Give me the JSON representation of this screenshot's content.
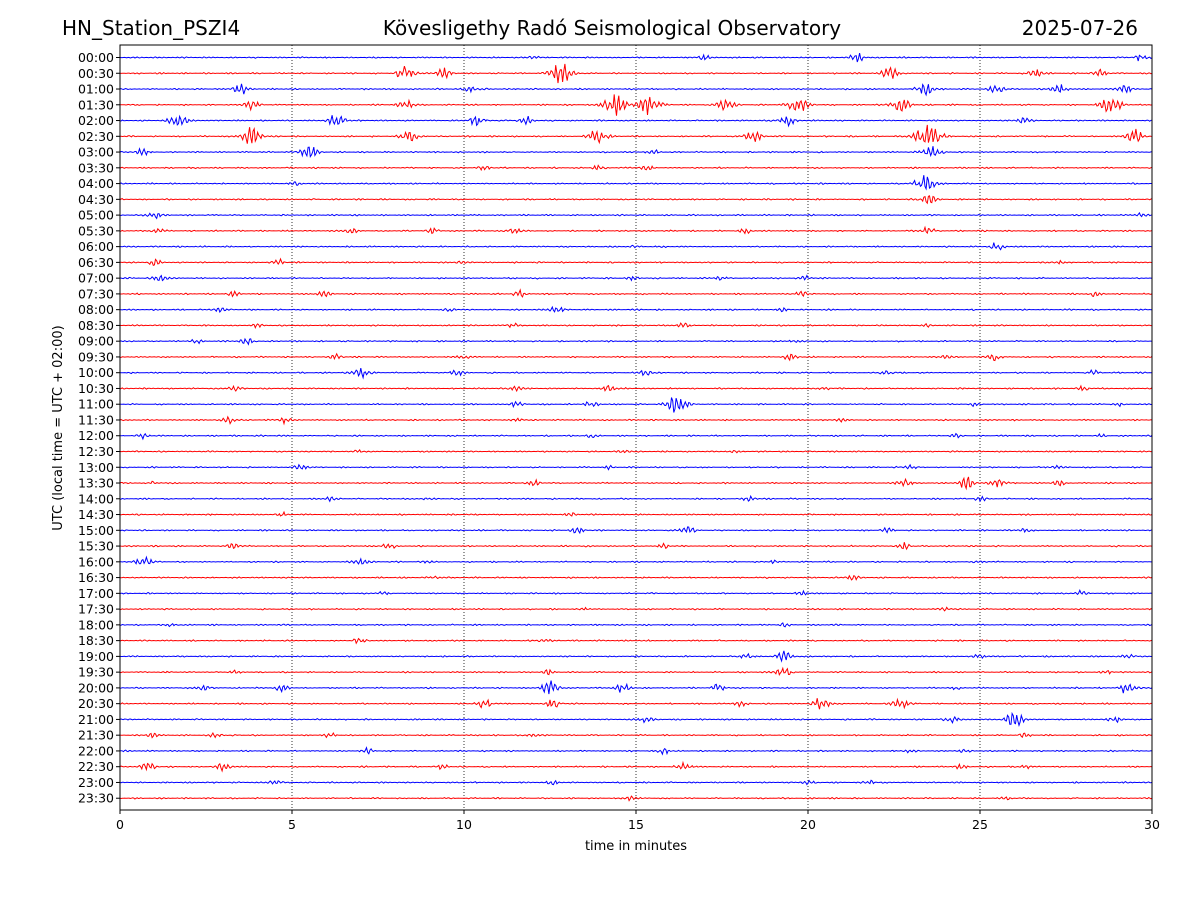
{
  "header": {
    "station": "HN_Station_PSZI4",
    "observatory": "Kövesligethy Radó Seismological Observatory",
    "date": "2025-07-26"
  },
  "chart_data": {
    "type": "line",
    "title": "Kövesligethy Radó Seismological Observatory",
    "xlabel": "time in minutes",
    "ylabel": "UTC (local time = UTC + 02:00)",
    "xlim": [
      0,
      30
    ],
    "x_ticks": [
      "0",
      "5",
      "10",
      "15",
      "20",
      "25",
      "30"
    ],
    "grid": "vertical dotted at each x tick",
    "colors": {
      "even_rows": "#0000ff",
      "odd_rows": "#ff0000"
    },
    "series": [
      {
        "name": "00:00",
        "bursts": [
          [
            21.4,
            0.6
          ],
          [
            29.7,
            0.5
          ],
          [
            17.0,
            0.4
          ],
          [
            12.0,
            0.2
          ]
        ]
      },
      {
        "name": "00:30",
        "bursts": [
          [
            8.3,
            0.8
          ],
          [
            12.8,
            1.2
          ],
          [
            9.4,
            0.6
          ],
          [
            22.4,
            0.7
          ],
          [
            26.6,
            0.6
          ],
          [
            28.5,
            0.5
          ]
        ]
      },
      {
        "name": "01:00",
        "bursts": [
          [
            3.5,
            0.6
          ],
          [
            10.2,
            0.4
          ],
          [
            23.4,
            0.8
          ],
          [
            25.5,
            0.5
          ],
          [
            27.3,
            0.6
          ],
          [
            29.2,
            0.5
          ]
        ]
      },
      {
        "name": "01:30",
        "bursts": [
          [
            3.8,
            0.6
          ],
          [
            8.3,
            0.6
          ],
          [
            14.4,
            1.3
          ],
          [
            15.4,
            1.2
          ],
          [
            17.6,
            0.7
          ],
          [
            19.7,
            1.0
          ],
          [
            22.7,
            0.9
          ],
          [
            28.8,
            1.0
          ]
        ]
      },
      {
        "name": "02:00",
        "bursts": [
          [
            1.7,
            0.8
          ],
          [
            6.3,
            0.8
          ],
          [
            10.4,
            0.7
          ],
          [
            11.8,
            0.5
          ],
          [
            19.4,
            0.6
          ],
          [
            26.3,
            0.5
          ]
        ]
      },
      {
        "name": "02:30",
        "bursts": [
          [
            3.8,
            1.0
          ],
          [
            8.4,
            0.7
          ],
          [
            13.9,
            0.9
          ],
          [
            18.4,
            0.7
          ],
          [
            23.5,
            1.5
          ],
          [
            29.5,
            0.8
          ]
        ]
      },
      {
        "name": "03:00",
        "bursts": [
          [
            0.6,
            0.5
          ],
          [
            5.5,
            0.8
          ],
          [
            23.6,
            0.8
          ],
          [
            15.5,
            0.3
          ]
        ]
      },
      {
        "name": "03:30",
        "bursts": [
          [
            10.6,
            0.3
          ],
          [
            13.9,
            0.3
          ],
          [
            15.3,
            0.3
          ]
        ]
      },
      {
        "name": "04:00",
        "bursts": [
          [
            23.4,
            1.0
          ],
          [
            5.1,
            0.3
          ]
        ]
      },
      {
        "name": "04:30",
        "bursts": [
          [
            23.5,
            0.6
          ]
        ]
      },
      {
        "name": "05:00",
        "bursts": [
          [
            1.0,
            0.5
          ],
          [
            29.7,
            0.3
          ]
        ]
      },
      {
        "name": "05:30",
        "bursts": [
          [
            1.1,
            0.3
          ],
          [
            6.7,
            0.3
          ],
          [
            9.1,
            0.3
          ],
          [
            11.5,
            0.4
          ],
          [
            18.2,
            0.3
          ],
          [
            23.5,
            0.5
          ]
        ]
      },
      {
        "name": "06:00",
        "bursts": [
          [
            25.5,
            0.5
          ],
          [
            14.9,
            0.2
          ],
          [
            15.7,
            0.2
          ]
        ]
      },
      {
        "name": "06:30",
        "bursts": [
          [
            1.0,
            0.4
          ],
          [
            4.6,
            0.4
          ],
          [
            9.9,
            0.2
          ],
          [
            27.3,
            0.2
          ]
        ]
      },
      {
        "name": "07:00",
        "bursts": [
          [
            1.2,
            0.4
          ],
          [
            14.9,
            0.2
          ],
          [
            17.4,
            0.3
          ],
          [
            19.9,
            0.3
          ]
        ]
      },
      {
        "name": "07:30",
        "bursts": [
          [
            3.3,
            0.3
          ],
          [
            5.9,
            0.3
          ],
          [
            11.6,
            0.4
          ],
          [
            19.8,
            0.3
          ],
          [
            28.3,
            0.3
          ]
        ]
      },
      {
        "name": "08:00",
        "bursts": [
          [
            2.9,
            0.3
          ],
          [
            12.7,
            0.5
          ],
          [
            9.6,
            0.2
          ],
          [
            19.3,
            0.2
          ]
        ]
      },
      {
        "name": "08:30",
        "bursts": [
          [
            16.4,
            0.4
          ],
          [
            4.0,
            0.2
          ],
          [
            11.4,
            0.3
          ],
          [
            23.4,
            0.2
          ]
        ]
      },
      {
        "name": "09:00",
        "bursts": [
          [
            3.7,
            0.5
          ],
          [
            2.2,
            0.3
          ],
          [
            19.6,
            0.2
          ]
        ]
      },
      {
        "name": "09:30",
        "bursts": [
          [
            6.3,
            0.3
          ],
          [
            19.5,
            0.4
          ],
          [
            25.4,
            0.5
          ],
          [
            24.0,
            0.3
          ],
          [
            10.0,
            0.3
          ]
        ]
      },
      {
        "name": "10:00",
        "bursts": [
          [
            7.0,
            0.6
          ],
          [
            9.8,
            0.4
          ],
          [
            15.3,
            0.5
          ],
          [
            22.3,
            0.3
          ],
          [
            28.3,
            0.3
          ]
        ]
      },
      {
        "name": "10:30",
        "bursts": [
          [
            3.3,
            0.3
          ],
          [
            11.5,
            0.3
          ],
          [
            14.2,
            0.4
          ],
          [
            20.5,
            0.2
          ],
          [
            28.0,
            0.3
          ]
        ]
      },
      {
        "name": "11:00",
        "bursts": [
          [
            16.2,
            1.1
          ],
          [
            13.7,
            0.4
          ],
          [
            11.5,
            0.3
          ],
          [
            24.8,
            0.2
          ],
          [
            29.0,
            0.2
          ]
        ]
      },
      {
        "name": "11:30",
        "bursts": [
          [
            3.2,
            0.4
          ],
          [
            4.8,
            0.4
          ],
          [
            11.6,
            0.2
          ],
          [
            20.9,
            0.2
          ]
        ]
      },
      {
        "name": "12:00",
        "bursts": [
          [
            0.7,
            0.3
          ],
          [
            13.7,
            0.3
          ],
          [
            24.3,
            0.2
          ],
          [
            28.5,
            0.2
          ]
        ]
      },
      {
        "name": "12:30",
        "bursts": [
          [
            7.0,
            0.2
          ],
          [
            14.7,
            0.2
          ],
          [
            17.8,
            0.2
          ]
        ]
      },
      {
        "name": "13:00",
        "bursts": [
          [
            5.3,
            0.4
          ],
          [
            14.2,
            0.2
          ],
          [
            23.0,
            0.3
          ],
          [
            27.2,
            0.2
          ]
        ]
      },
      {
        "name": "13:30",
        "bursts": [
          [
            12.0,
            0.4
          ],
          [
            22.8,
            0.5
          ],
          [
            24.6,
            0.7
          ],
          [
            25.5,
            0.6
          ],
          [
            27.3,
            0.3
          ],
          [
            1.0,
            0.2
          ]
        ]
      },
      {
        "name": "14:00",
        "bursts": [
          [
            6.1,
            0.3
          ],
          [
            8.8,
            0.2
          ],
          [
            18.3,
            0.3
          ],
          [
            25.0,
            0.3
          ]
        ]
      },
      {
        "name": "14:30",
        "bursts": [
          [
            4.7,
            0.3
          ],
          [
            13.1,
            0.2
          ]
        ]
      },
      {
        "name": "15:00",
        "bursts": [
          [
            13.3,
            0.4
          ],
          [
            16.5,
            0.5
          ],
          [
            22.3,
            0.3
          ],
          [
            26.3,
            0.3
          ]
        ]
      },
      {
        "name": "15:30",
        "bursts": [
          [
            3.3,
            0.4
          ],
          [
            7.8,
            0.4
          ],
          [
            15.8,
            0.3
          ],
          [
            22.8,
            0.4
          ]
        ]
      },
      {
        "name": "16:00",
        "bursts": [
          [
            0.7,
            0.6
          ],
          [
            7.0,
            0.4
          ],
          [
            9.0,
            0.2
          ],
          [
            19.0,
            0.2
          ],
          [
            25.0,
            0.2
          ]
        ]
      },
      {
        "name": "16:30",
        "bursts": [
          [
            21.3,
            0.3
          ],
          [
            9.2,
            0.2
          ],
          [
            18.9,
            0.2
          ]
        ]
      },
      {
        "name": "17:00",
        "bursts": [
          [
            19.8,
            0.3
          ],
          [
            27.9,
            0.3
          ],
          [
            7.6,
            0.2
          ]
        ]
      },
      {
        "name": "17:30",
        "bursts": [
          [
            13.5,
            0.2
          ],
          [
            24.0,
            0.2
          ]
        ]
      },
      {
        "name": "18:00",
        "bursts": [
          [
            1.5,
            0.2
          ],
          [
            19.3,
            0.2
          ]
        ]
      },
      {
        "name": "18:30",
        "bursts": [
          [
            7.0,
            0.4
          ],
          [
            12.3,
            0.2
          ]
        ]
      },
      {
        "name": "19:00",
        "bursts": [
          [
            19.3,
            0.6
          ],
          [
            25.0,
            0.3
          ],
          [
            29.3,
            0.3
          ],
          [
            18.2,
            0.3
          ]
        ]
      },
      {
        "name": "19:30",
        "bursts": [
          [
            19.3,
            0.6
          ],
          [
            12.5,
            0.4
          ],
          [
            28.7,
            0.3
          ],
          [
            3.3,
            0.2
          ]
        ]
      },
      {
        "name": "20:00",
        "bursts": [
          [
            12.5,
            0.8
          ],
          [
            14.6,
            0.6
          ],
          [
            17.4,
            0.5
          ],
          [
            29.3,
            0.8
          ],
          [
            4.7,
            0.4
          ],
          [
            2.4,
            0.3
          ],
          [
            24.3,
            0.3
          ]
        ]
      },
      {
        "name": "20:30",
        "bursts": [
          [
            10.6,
            0.6
          ],
          [
            12.6,
            0.5
          ],
          [
            20.4,
            0.8
          ],
          [
            22.7,
            0.6
          ],
          [
            18.0,
            0.3
          ]
        ]
      },
      {
        "name": "21:00",
        "bursts": [
          [
            26.0,
            0.9
          ],
          [
            15.3,
            0.5
          ],
          [
            28.9,
            0.5
          ],
          [
            24.2,
            0.4
          ]
        ]
      },
      {
        "name": "21:30",
        "bursts": [
          [
            0.9,
            0.3
          ],
          [
            2.8,
            0.3
          ],
          [
            6.1,
            0.3
          ],
          [
            12.0,
            0.2
          ],
          [
            26.3,
            0.3
          ]
        ]
      },
      {
        "name": "22:00",
        "bursts": [
          [
            7.2,
            0.3
          ],
          [
            15.8,
            0.4
          ],
          [
            23.0,
            0.3
          ],
          [
            24.5,
            0.3
          ]
        ]
      },
      {
        "name": "22:30",
        "bursts": [
          [
            0.8,
            0.5
          ],
          [
            3.0,
            0.5
          ],
          [
            9.4,
            0.3
          ],
          [
            16.4,
            0.5
          ],
          [
            26.3,
            0.3
          ],
          [
            24.4,
            0.3
          ]
        ]
      },
      {
        "name": "23:00",
        "bursts": [
          [
            4.5,
            0.3
          ],
          [
            12.6,
            0.3
          ],
          [
            20.0,
            0.3
          ],
          [
            21.8,
            0.3
          ]
        ]
      },
      {
        "name": "23:30",
        "bursts": [
          [
            14.8,
            0.3
          ],
          [
            25.8,
            0.2
          ]
        ]
      }
    ]
  }
}
